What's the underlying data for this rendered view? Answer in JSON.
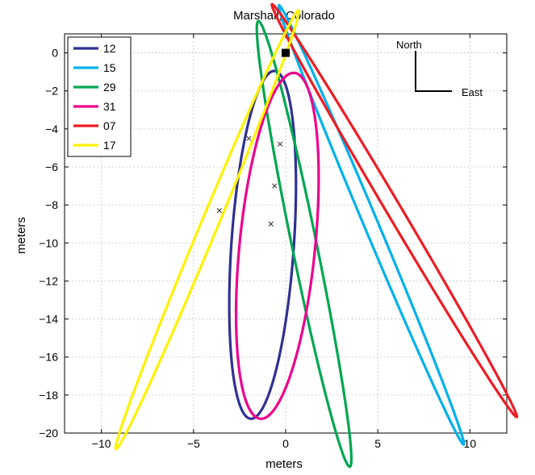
{
  "chart_data": {
    "type": "line",
    "title": "Marshall, Colorado",
    "xlabel": "meters",
    "ylabel": "meters",
    "xlim": [
      -12,
      12
    ],
    "ylim": [
      -20,
      1
    ],
    "xticks": [
      -10,
      -5,
      0,
      5,
      10
    ],
    "yticks": [
      0,
      -2,
      -4,
      -6,
      -8,
      -10,
      -12,
      -14,
      -16,
      -18,
      -20
    ],
    "grid": true,
    "legend_position": "top-left",
    "series": [
      {
        "name": "12",
        "color": "#2e3192",
        "ellipse": {
          "center": [
            -1.25,
            -10.1
          ],
          "extreme_points": [
            [
              -0.6,
              -0.95
            ],
            [
              -1.85,
              -19.25
            ],
            [
              0.35,
              -10.1
            ],
            [
              -3.05,
              -10.1
            ]
          ]
        }
      },
      {
        "name": "15",
        "color": "#00b0ea",
        "ellipse": {
          "center": [
            4.65,
            -9.05
          ],
          "extreme_points": [
            [
              1.2,
              -0.5
            ],
            [
              8.05,
              -17.6
            ],
            [
              8.3,
              -16.85
            ],
            [
              0.95,
              -1.3
            ]
          ]
        }
      },
      {
        "name": "29",
        "color": "#00a650",
        "ellipse": {
          "center": [
            1.0,
            -10.05
          ],
          "extreme_points": [
            [
              0.05,
              -1.0
            ],
            [
              3.0,
              -19.1
            ],
            [
              3.55,
              -17.5
            ],
            [
              -0.65,
              -2.6
            ]
          ]
        }
      },
      {
        "name": "31",
        "color": "#ec008c",
        "ellipse": {
          "center": [
            -0.45,
            -10.15
          ],
          "extreme_points": [
            [
              0.1,
              -1.05
            ],
            [
              -1.6,
              -19.25
            ],
            [
              1.6,
              -9.9
            ],
            [
              -2.55,
              -10.2
            ]
          ]
        }
      },
      {
        "name": "07",
        "color": "#ed1c24",
        "ellipse": {
          "center": [
            5.9,
            -8.3
          ],
          "extreme_points": [
            [
              1.4,
              -0.45
            ],
            [
              10.45,
              -16.3
            ],
            [
              10.7,
              -15.8
            ],
            [
              0.95,
              -0.95
            ]
          ]
        }
      },
      {
        "name": "17",
        "color": "#fff200",
        "ellipse": {
          "center": [
            -4.25,
            -9.3
          ],
          "extreme_points": [
            [
              -0.9,
              -0.8
            ],
            [
              -7.55,
              -17.85
            ],
            [
              -0.5,
              -1.45
            ],
            [
              -7.9,
              -17.0
            ]
          ]
        }
      }
    ],
    "x_markers": [
      [
        -2.0,
        -4.5
      ],
      [
        -0.3,
        -4.8
      ],
      [
        -0.6,
        -7.0
      ],
      [
        -3.6,
        -8.3
      ],
      [
        -0.8,
        -9.0
      ]
    ],
    "square_marker": [
      0.0,
      0.0
    ],
    "compass": {
      "north_label": "North",
      "east_label": "East"
    }
  }
}
